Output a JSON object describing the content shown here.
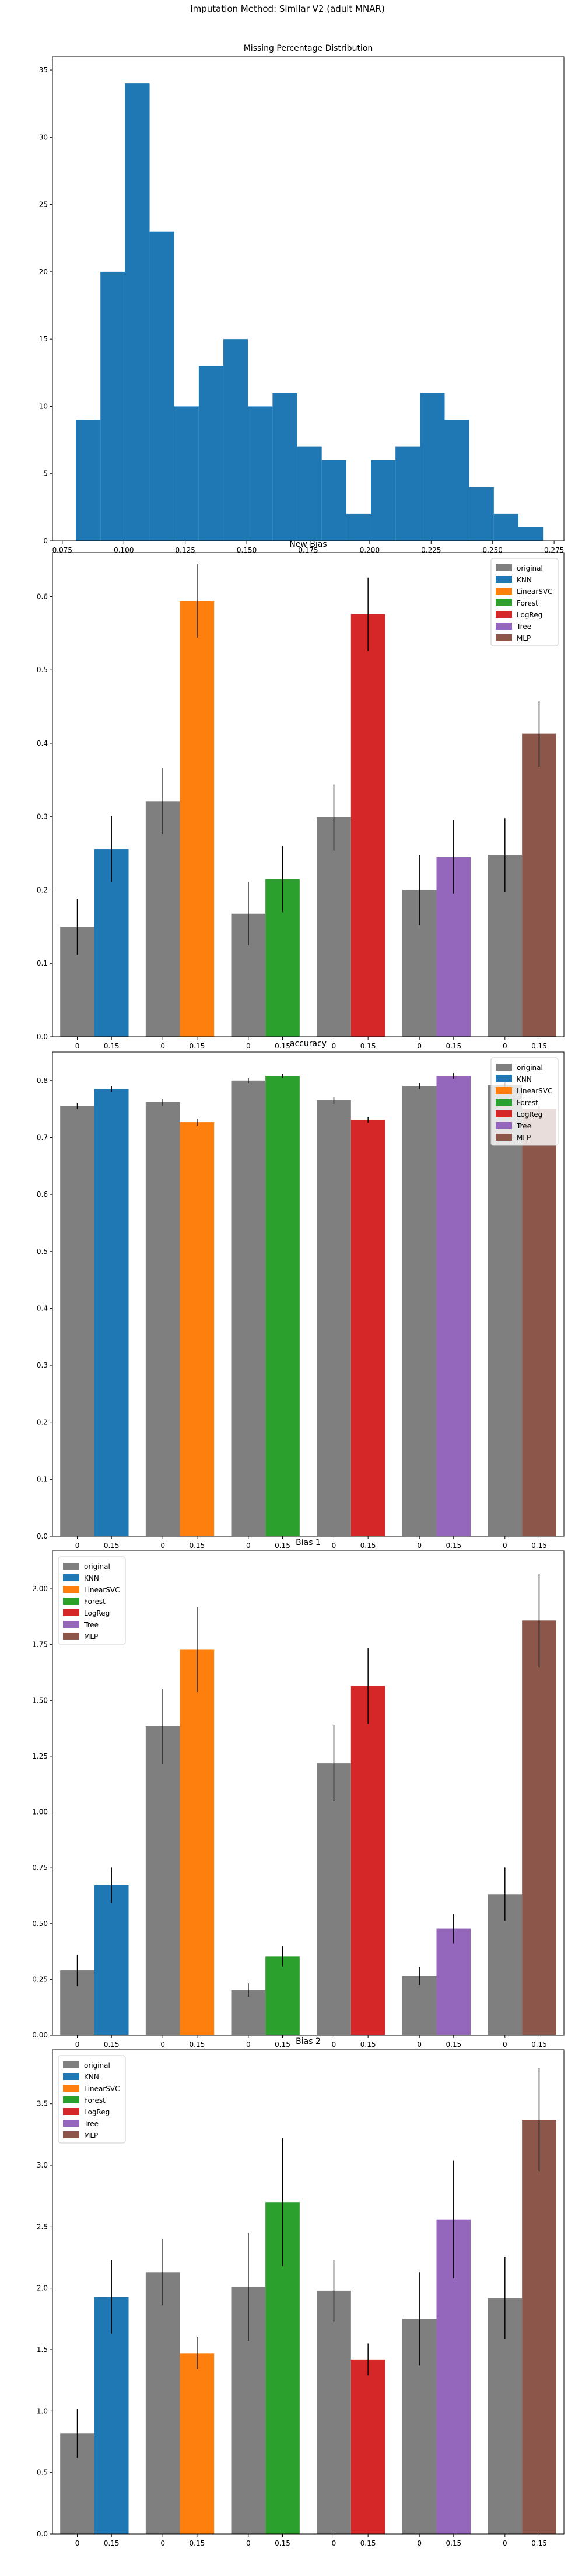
{
  "suptitle": "Imputation Method: Similar V2 (adult MNAR)",
  "colors": {
    "original": "#7f7f7f",
    "KNN": "#1f77b4",
    "LinearSVC": "#ff7f0e",
    "Forest": "#2ca02c",
    "LogReg": "#d62728",
    "Tree": "#9467bd",
    "MLP": "#8c564b",
    "hist": "#1f77b4"
  },
  "chart_data": [
    {
      "type": "histogram",
      "title": "Missing Percentage Distribution",
      "xlim": [
        0.071,
        0.279
      ],
      "ylim": [
        0,
        36
      ],
      "xticks": [
        "0.075",
        "0.100",
        "0.125",
        "0.150",
        "0.175",
        "0.200",
        "0.225",
        "0.250",
        "0.275"
      ],
      "yticks": [
        "0",
        "5",
        "10",
        "15",
        "20",
        "25",
        "30",
        "35"
      ],
      "bins": [
        {
          "x0": 0.0805,
          "x1": 0.0905,
          "count": 9
        },
        {
          "x0": 0.0905,
          "x1": 0.1005,
          "count": 20
        },
        {
          "x0": 0.1005,
          "x1": 0.1105,
          "count": 34
        },
        {
          "x0": 0.1105,
          "x1": 0.1205,
          "count": 23
        },
        {
          "x0": 0.1205,
          "x1": 0.1305,
          "count": 10
        },
        {
          "x0": 0.1305,
          "x1": 0.1405,
          "count": 13
        },
        {
          "x0": 0.1405,
          "x1": 0.1505,
          "count": 15
        },
        {
          "x0": 0.1505,
          "x1": 0.1605,
          "count": 10
        },
        {
          "x0": 0.1605,
          "x1": 0.1705,
          "count": 11
        },
        {
          "x0": 0.1705,
          "x1": 0.1805,
          "count": 7
        },
        {
          "x0": 0.1805,
          "x1": 0.1905,
          "count": 6
        },
        {
          "x0": 0.1905,
          "x1": 0.2005,
          "count": 2
        },
        {
          "x0": 0.2005,
          "x1": 0.2105,
          "count": 6
        },
        {
          "x0": 0.2105,
          "x1": 0.2205,
          "count": 7
        },
        {
          "x0": 0.2205,
          "x1": 0.2305,
          "count": 11
        },
        {
          "x0": 0.2305,
          "x1": 0.2405,
          "count": 9
        },
        {
          "x0": 0.2405,
          "x1": 0.2505,
          "count": 4
        },
        {
          "x0": 0.2505,
          "x1": 0.2605,
          "count": 2
        },
        {
          "x0": 0.2605,
          "x1": 0.2705,
          "count": 1
        }
      ]
    },
    {
      "type": "bar",
      "title": "New Bias",
      "ylim": [
        0,
        0.66
      ],
      "yticks": [
        "0.0",
        "0.1",
        "0.2",
        "0.3",
        "0.4",
        "0.5",
        "0.6"
      ],
      "legend_position": "top-right",
      "legend": [
        "original",
        "KNN",
        "LinearSVC",
        "Forest",
        "LogReg",
        "Tree",
        "MLP"
      ],
      "groups": [
        {
          "method": "KNN",
          "x_labels": [
            "0",
            "0.15"
          ],
          "original": {
            "value": 0.15,
            "err": 0.038
          },
          "imputed": {
            "value": 0.256,
            "err": 0.045
          }
        },
        {
          "method": "LinearSVC",
          "x_labels": [
            "0",
            "0.15"
          ],
          "original": {
            "value": 0.321,
            "err": 0.045
          },
          "imputed": {
            "value": 0.594,
            "err": 0.05
          }
        },
        {
          "method": "Forest",
          "x_labels": [
            "0",
            "0.15"
          ],
          "original": {
            "value": 0.168,
            "err": 0.043
          },
          "imputed": {
            "value": 0.215,
            "err": 0.045
          }
        },
        {
          "method": "LogReg",
          "x_labels": [
            "0",
            "0.15"
          ],
          "original": {
            "value": 0.299,
            "err": 0.045
          },
          "imputed": {
            "value": 0.576,
            "err": 0.05
          }
        },
        {
          "method": "Tree",
          "x_labels": [
            "0",
            "0.15"
          ],
          "original": {
            "value": 0.2,
            "err": 0.048
          },
          "imputed": {
            "value": 0.245,
            "err": 0.05
          }
        },
        {
          "method": "MLP",
          "x_labels": [
            "0",
            "0.15"
          ],
          "original": {
            "value": 0.248,
            "err": 0.05
          },
          "imputed": {
            "value": 0.413,
            "err": 0.045
          }
        }
      ]
    },
    {
      "type": "bar",
      "title": "accuracy",
      "ylim": [
        0,
        0.85
      ],
      "yticks": [
        "0.0",
        "0.1",
        "0.2",
        "0.3",
        "0.4",
        "0.5",
        "0.6",
        "0.7",
        "0.8"
      ],
      "legend_position": "top-right",
      "legend": [
        "original",
        "KNN",
        "LinearSVC",
        "Forest",
        "LogReg",
        "Tree",
        "MLP"
      ],
      "groups": [
        {
          "method": "KNN",
          "x_labels": [
            "0",
            "0.15"
          ],
          "original": {
            "value": 0.755,
            "err": 0.005
          },
          "imputed": {
            "value": 0.785,
            "err": 0.005
          }
        },
        {
          "method": "LinearSVC",
          "x_labels": [
            "0",
            "0.15"
          ],
          "original": {
            "value": 0.762,
            "err": 0.006
          },
          "imputed": {
            "value": 0.727,
            "err": 0.006
          }
        },
        {
          "method": "Forest",
          "x_labels": [
            "0",
            "0.15"
          ],
          "original": {
            "value": 0.8,
            "err": 0.005
          },
          "imputed": {
            "value": 0.808,
            "err": 0.004
          }
        },
        {
          "method": "LogReg",
          "x_labels": [
            "0",
            "0.15"
          ],
          "original": {
            "value": 0.765,
            "err": 0.006
          },
          "imputed": {
            "value": 0.731,
            "err": 0.005
          }
        },
        {
          "method": "Tree",
          "x_labels": [
            "0",
            "0.15"
          ],
          "original": {
            "value": 0.79,
            "err": 0.005
          },
          "imputed": {
            "value": 0.808,
            "err": 0.005
          }
        },
        {
          "method": "MLP",
          "x_labels": [
            "0",
            "0.15"
          ],
          "original": {
            "value": 0.792,
            "err": 0.005
          },
          "imputed": {
            "value": 0.75,
            "err": 0.005
          }
        }
      ]
    },
    {
      "type": "bar",
      "title": "Bias 1",
      "ylim": [
        0,
        2.17
      ],
      "yticks": [
        "0.00",
        "0.25",
        "0.50",
        "0.75",
        "1.00",
        "1.25",
        "1.50",
        "1.75",
        "2.00"
      ],
      "legend_position": "top-left",
      "legend": [
        "original",
        "KNN",
        "LinearSVC",
        "Forest",
        "LogReg",
        "Tree",
        "MLP"
      ],
      "groups": [
        {
          "method": "KNN",
          "x_labels": [
            "0",
            "0.15"
          ],
          "original": {
            "value": 0.29,
            "err": 0.07
          },
          "imputed": {
            "value": 0.672,
            "err": 0.08
          }
        },
        {
          "method": "LinearSVC",
          "x_labels": [
            "0",
            "0.15"
          ],
          "original": {
            "value": 1.383,
            "err": 0.17
          },
          "imputed": {
            "value": 1.727,
            "err": 0.19
          }
        },
        {
          "method": "Forest",
          "x_labels": [
            "0",
            "0.15"
          ],
          "original": {
            "value": 0.202,
            "err": 0.03
          },
          "imputed": {
            "value": 0.352,
            "err": 0.045
          }
        },
        {
          "method": "LogReg",
          "x_labels": [
            "0",
            "0.15"
          ],
          "original": {
            "value": 1.218,
            "err": 0.17
          },
          "imputed": {
            "value": 1.565,
            "err": 0.17
          }
        },
        {
          "method": "Tree",
          "x_labels": [
            "0",
            "0.15"
          ],
          "original": {
            "value": 0.265,
            "err": 0.04
          },
          "imputed": {
            "value": 0.477,
            "err": 0.065
          }
        },
        {
          "method": "MLP",
          "x_labels": [
            "0",
            "0.15"
          ],
          "original": {
            "value": 0.632,
            "err": 0.12
          },
          "imputed": {
            "value": 1.858,
            "err": 0.21
          }
        }
      ]
    },
    {
      "type": "bar",
      "title": "Bias 2",
      "ylim": [
        0,
        3.94
      ],
      "yticks": [
        "0.0",
        "0.5",
        "1.0",
        "1.5",
        "2.0",
        "2.5",
        "3.0",
        "3.5"
      ],
      "legend_position": "top-left",
      "legend": [
        "original",
        "KNN",
        "LinearSVC",
        "Forest",
        "LogReg",
        "Tree",
        "MLP"
      ],
      "groups": [
        {
          "method": "KNN",
          "x_labels": [
            "0",
            "0.15"
          ],
          "original": {
            "value": 0.82,
            "err": 0.2
          },
          "imputed": {
            "value": 1.93,
            "err": 0.3
          }
        },
        {
          "method": "LinearSVC",
          "x_labels": [
            "0",
            "0.15"
          ],
          "original": {
            "value": 2.13,
            "err": 0.27
          },
          "imputed": {
            "value": 1.47,
            "err": 0.13
          }
        },
        {
          "method": "Forest",
          "x_labels": [
            "0",
            "0.15"
          ],
          "original": {
            "value": 2.01,
            "err": 0.44
          },
          "imputed": {
            "value": 2.7,
            "err": 0.52
          }
        },
        {
          "method": "LogReg",
          "x_labels": [
            "0",
            "0.15"
          ],
          "original": {
            "value": 1.98,
            "err": 0.25
          },
          "imputed": {
            "value": 1.42,
            "err": 0.13
          }
        },
        {
          "method": "Tree",
          "x_labels": [
            "0",
            "0.15"
          ],
          "original": {
            "value": 1.75,
            "err": 0.38
          },
          "imputed": {
            "value": 2.56,
            "err": 0.48
          }
        },
        {
          "method": "MLP",
          "x_labels": [
            "0",
            "0.15"
          ],
          "original": {
            "value": 1.92,
            "err": 0.33
          },
          "imputed": {
            "value": 3.37,
            "err": 0.42
          }
        }
      ]
    }
  ]
}
